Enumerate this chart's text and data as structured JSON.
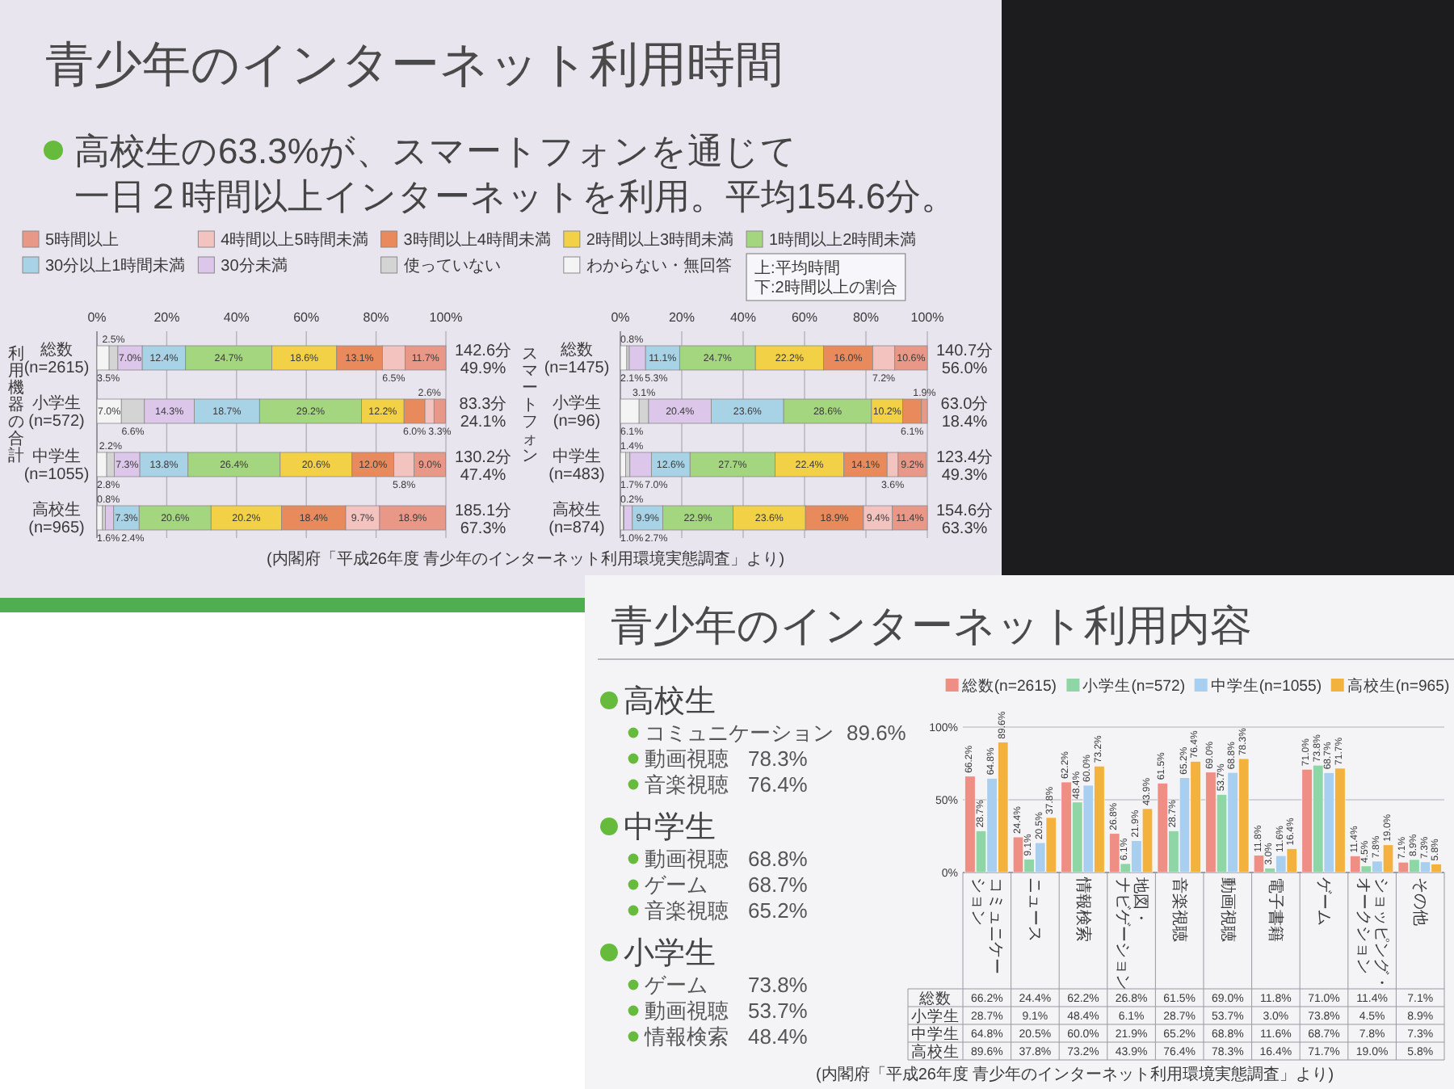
{
  "chart_data": [
    {
      "type": "bar",
      "title": "青少年のインターネット利用時間",
      "subtitle": "高校生の63.3%が、スマートフォンを通じて一日２時間以上インターネットを利用。平均154.6分。",
      "ylabel": "利用機器の合計",
      "orientation": "horizontal",
      "stacked": true,
      "categories": [
        "総数(n=2615)",
        "小学生(n=572)",
        "中学生(n=1055)",
        "高校生(n=965)"
      ],
      "series": [
        {
          "name": "わからない・無回答",
          "color": "#f4f4f4",
          "values": [
            3.5,
            7.0,
            2.8,
            1.6
          ],
          "value_labels": [
            "3.5%",
            "7.0%",
            "2.8%",
            "1.6%"
          ]
        },
        {
          "name": "使っていない",
          "color": "#d4d4d4",
          "values": [
            2.5,
            6.6,
            2.2,
            0.8
          ],
          "value_labels": [
            "2.5%",
            "6.6%",
            "2.2%",
            "0.8%"
          ]
        },
        {
          "name": "30分未満",
          "color": "#dcc6ea",
          "values": [
            7.0,
            14.3,
            7.3,
            2.4
          ],
          "value_labels": [
            "7.0%",
            "14.3%",
            "7.3%",
            "2.4%"
          ]
        },
        {
          "name": "30分以上1時間未満",
          "color": "#a8d3e6",
          "values": [
            12.4,
            18.7,
            13.8,
            7.3
          ],
          "value_labels": [
            "12.4%",
            "18.7%",
            "13.8%",
            "7.3%"
          ]
        },
        {
          "name": "1時間以上2時間未満",
          "color": "#a3d67f",
          "values": [
            24.7,
            29.2,
            26.4,
            20.6
          ],
          "value_labels": [
            "24.7%",
            "29.2%",
            "26.4%",
            "20.6%"
          ]
        },
        {
          "name": "2時間以上3時間未満",
          "color": "#f2d147",
          "values": [
            18.6,
            12.2,
            20.6,
            20.2
          ],
          "value_labels": [
            "18.6%",
            "12.2%",
            "20.6%",
            "20.2%"
          ]
        },
        {
          "name": "3時間以上4時間未満",
          "color": "#e98a5c",
          "values": [
            13.1,
            6.0,
            12.0,
            18.4
          ],
          "value_labels": [
            "13.1%",
            "6.0%",
            "12.0%",
            "18.4%"
          ]
        },
        {
          "name": "4時間以上5時間未満",
          "color": "#f3c4bf",
          "values": [
            6.5,
            2.6,
            5.8,
            9.7
          ],
          "value_labels": [
            "6.5%",
            "2.6%",
            "5.8%",
            "9.7%"
          ]
        },
        {
          "name": "5時間以上",
          "color": "#e99888",
          "values": [
            11.7,
            3.3,
            9.0,
            18.9
          ],
          "value_labels": [
            "11.7%",
            "3.3%",
            "9.0%",
            "18.9%"
          ]
        }
      ],
      "xlim": [
        0,
        100
      ],
      "xticks": [
        {
          "value": 0,
          "label": "0%"
        },
        {
          "value": 20,
          "label": "20%"
        },
        {
          "value": 40,
          "label": "40%"
        },
        {
          "value": 60,
          "label": "60%"
        },
        {
          "value": 80,
          "label": "80%"
        },
        {
          "value": 100,
          "label": "100%"
        }
      ],
      "grid": "x",
      "legend": "top",
      "annotations": [
        "142.6分",
        "49.9%",
        "83.3分",
        "24.1%",
        "130.2分",
        "47.4%",
        "185.1分",
        "67.3%",
        "上:平均時間",
        "下:2時間以上の割合"
      ]
    },
    {
      "type": "bar",
      "ylabel": "スマートフォン",
      "orientation": "horizontal",
      "stacked": true,
      "categories": [
        "総数(n=1475)",
        "小学生(n=96)",
        "中学生(n=483)",
        "高校生(n=874)"
      ],
      "series": [
        {
          "color": "#f4f4f4",
          "values": [
            2.1,
            6.1,
            1.7,
            1.0
          ],
          "value_labels": [
            "2.1%",
            "6.1%",
            "1.7%",
            "1.0%"
          ]
        },
        {
          "color": "#d4d4d4",
          "values": [
            0.8,
            3.1,
            1.4,
            0.2
          ],
          "value_labels": [
            "0.8%",
            "3.1%",
            "1.4%",
            "0.2%"
          ]
        },
        {
          "color": "#dcc6ea",
          "values": [
            5.3,
            20.4,
            7.0,
            2.7
          ],
          "value_labels": [
            "5.3%",
            "20.4%",
            "7.0%",
            "2.7%"
          ]
        },
        {
          "color": "#a8d3e6",
          "values": [
            11.1,
            23.6,
            12.6,
            9.9
          ],
          "value_labels": [
            "11.1%",
            "23.6%",
            "12.6%",
            "9.9%"
          ]
        },
        {
          "color": "#a3d67f",
          "values": [
            24.7,
            28.6,
            27.7,
            22.9
          ],
          "value_labels": [
            "24.7%",
            "28.6%",
            "27.7%",
            "22.9%"
          ]
        },
        {
          "color": "#f2d147",
          "values": [
            22.2,
            10.2,
            22.4,
            23.6
          ],
          "value_labels": [
            "22.2%",
            "10.2%",
            "22.4%",
            "23.6%"
          ]
        },
        {
          "color": "#e98a5c",
          "values": [
            16.0,
            6.1,
            14.1,
            18.9
          ],
          "value_labels": [
            "16.0%",
            "6.1%",
            "14.1%",
            "18.9%"
          ]
        },
        {
          "color": "#f3c4bf",
          "values": [
            7.2,
            null,
            3.6,
            9.4
          ],
          "value_labels": [
            "7.2%",
            null,
            "3.6%",
            "9.4%"
          ]
        },
        {
          "color": "#e99888",
          "values": [
            10.6,
            1.9,
            9.2,
            11.4
          ],
          "value_labels": [
            "10.6%",
            "1.9%",
            "9.2%",
            "11.4%"
          ]
        }
      ],
      "xlim": [
        0,
        100
      ],
      "xticks": [
        {
          "value": 0,
          "label": "0%"
        },
        {
          "value": 20,
          "label": "20%"
        },
        {
          "value": 40,
          "label": "40%"
        },
        {
          "value": 60,
          "label": "60%"
        },
        {
          "value": 80,
          "label": "80%"
        },
        {
          "value": 100,
          "label": "100%"
        }
      ],
      "grid": "x",
      "annotations": [
        "140.7分",
        "56.0%",
        "63.0分",
        "18.4%",
        "123.4分",
        "49.3%",
        "154.6分",
        "63.3%",
        "(内閣府「平成26年度 青少年のインターネット利用環境実態調査」より)"
      ]
    },
    {
      "type": "bar",
      "title": "青少年のインターネット利用内容",
      "categories": [
        "コミュニケーション",
        "ニュース",
        "情報検索",
        "地図・ナビゲーション",
        "音楽視聴",
        "動画視聴",
        "電子書籍",
        "ゲーム",
        "ショッピング・オークション",
        "その他"
      ],
      "series": [
        {
          "name": "総数(n=2615)",
          "color": "#ee8e84",
          "values": [
            66.2,
            24.4,
            62.2,
            26.8,
            61.5,
            69.0,
            11.8,
            71.0,
            11.4,
            7.1
          ],
          "value_labels": [
            "66.2%",
            "24.4%",
            "62.2%",
            "26.8%",
            "61.5%",
            "69.0%",
            "11.8%",
            "71.0%",
            "11.4%",
            "7.1%"
          ]
        },
        {
          "name": "小学生(n=572)",
          "color": "#8fd6a6",
          "values": [
            28.7,
            9.1,
            48.4,
            6.1,
            28.7,
            53.7,
            3.0,
            73.8,
            4.5,
            8.9
          ],
          "value_labels": [
            "28.7%",
            "9.1%",
            "48.4%",
            "6.1%",
            "28.7%",
            "53.7%",
            "3.0%",
            "73.8%",
            "4.5%",
            "8.9%"
          ]
        },
        {
          "name": "中学生(n=1055)",
          "color": "#a9cff0",
          "values": [
            64.8,
            20.5,
            60.0,
            21.9,
            65.2,
            68.8,
            11.6,
            68.7,
            7.8,
            7.3
          ],
          "value_labels": [
            "64.8%",
            "20.5%",
            "60.0%",
            "21.9%",
            "65.2%",
            "68.8%",
            "11.6%",
            "68.7%",
            "7.8%",
            "7.3%"
          ]
        },
        {
          "name": "高校生(n=965)",
          "color": "#f3b23e",
          "values": [
            89.6,
            37.8,
            73.2,
            43.9,
            76.4,
            78.3,
            16.4,
            71.7,
            19.0,
            5.8
          ],
          "value_labels": [
            "89.6%",
            "37.8%",
            "73.2%",
            "43.9%",
            "76.4%",
            "78.3%",
            "16.4%",
            "71.7%",
            "19.0%",
            "5.8%"
          ]
        }
      ],
      "ylim": [
        0,
        100
      ],
      "yticks": [
        {
          "value": 0,
          "label": "0%"
        },
        {
          "value": 50,
          "label": "50%"
        },
        {
          "value": 100,
          "label": "100%"
        }
      ],
      "grid": "y",
      "legend": "top",
      "annotations": [
        "総数",
        "小学生",
        "中学生",
        "高校生",
        "(内閣府「平成26年度 青少年のインターネット利用環境実態調査」より)"
      ]
    },
    {
      "type": "other",
      "title": "高校生",
      "annotations": [
        "コミュニケーション 89.6%",
        "動画視聴 78.3%",
        "音楽視聴 76.4%"
      ]
    },
    {
      "type": "other",
      "title": "中学生",
      "annotations": [
        "動画視聴 68.8%",
        "ゲーム 68.7%",
        "音楽視聴 65.2%"
      ]
    },
    {
      "type": "other",
      "title": "小学生",
      "annotations": [
        "ゲーム 73.8%",
        "動画視聴 53.7%",
        "情報検索 48.4%"
      ]
    }
  ]
}
